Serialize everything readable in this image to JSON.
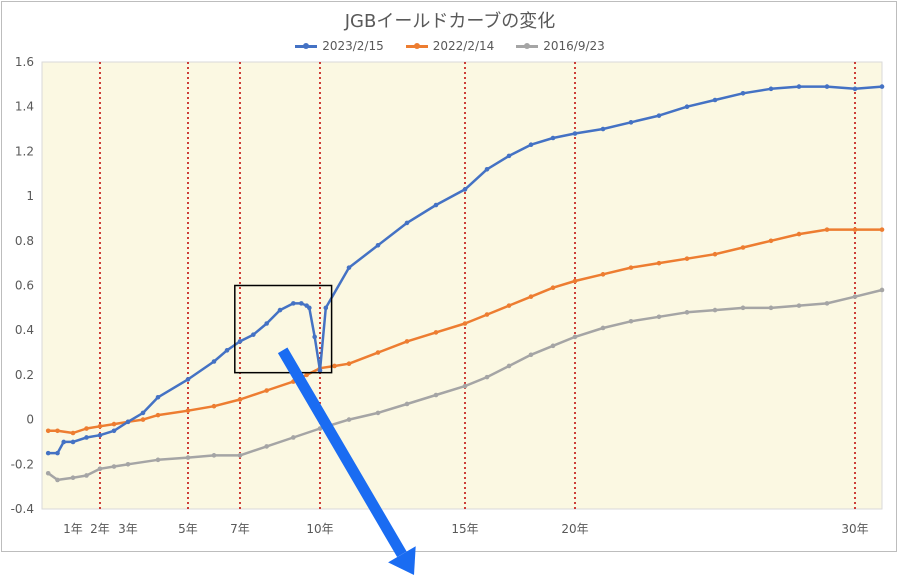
{
  "chart_data": {
    "type": "line",
    "title": "JGBイールドカーブの変化",
    "ylim": [
      -0.4,
      1.6
    ],
    "y_ticks": [
      "1.6",
      "1.4",
      "1.2",
      "1",
      "0.8",
      "0.6",
      "0.4",
      "0.2",
      "0",
      "-0.2",
      "-0.4"
    ],
    "y_tick_values": [
      1.6,
      1.4,
      1.2,
      1.0,
      0.8,
      0.6,
      0.4,
      0.2,
      0.0,
      -0.2,
      -0.4
    ],
    "x_tick_labels": [
      "1年",
      "2年",
      "3年",
      "5年",
      "7年",
      "10年",
      "15年",
      "20年",
      "30年"
    ],
    "x_tick_years": [
      1,
      2,
      3,
      5,
      7,
      10,
      15,
      20,
      30
    ],
    "vertical_reference_lines_years": [
      2,
      5,
      7,
      10,
      15,
      20,
      30
    ],
    "plot_background": "#fbf8e2",
    "legend_position": "top",
    "grid": false,
    "series": [
      {
        "name": "2023/2/15",
        "color": "#4472c4",
        "x": [
          0.2,
          0.5,
          0.7,
          1,
          1.5,
          2,
          2.5,
          3,
          3.5,
          4,
          5,
          6,
          6.5,
          7,
          7.5,
          8,
          8.5,
          9,
          9.3,
          9.5,
          9.6,
          9.8,
          10,
          10.2,
          11,
          12,
          13,
          14,
          15,
          16,
          17,
          18,
          19,
          20,
          21,
          22,
          23,
          24,
          25,
          26,
          27,
          28,
          29,
          30,
          31
        ],
        "values": [
          -0.15,
          -0.15,
          -0.1,
          -0.1,
          -0.08,
          -0.07,
          -0.05,
          -0.01,
          0.03,
          0.1,
          0.18,
          0.26,
          0.31,
          0.35,
          0.38,
          0.43,
          0.49,
          0.52,
          0.52,
          0.51,
          0.5,
          0.37,
          0.22,
          0.5,
          0.68,
          0.78,
          0.88,
          0.96,
          1.03,
          1.12,
          1.18,
          1.23,
          1.26,
          1.28,
          1.3,
          1.33,
          1.36,
          1.4,
          1.43,
          1.46,
          1.48,
          1.49,
          1.49,
          1.48,
          1.49
        ]
      },
      {
        "name": "2022/2/14",
        "color": "#ed7d31",
        "x": [
          0.2,
          0.5,
          1,
          1.5,
          2,
          2.5,
          3,
          3.5,
          4,
          5,
          6,
          7,
          8,
          9,
          9.5,
          10,
          10.5,
          11,
          12,
          13,
          14,
          15,
          16,
          17,
          18,
          19,
          20,
          21,
          22,
          23,
          24,
          25,
          26,
          27,
          28,
          29,
          30,
          31
        ],
        "values": [
          -0.05,
          -0.05,
          -0.06,
          -0.04,
          -0.03,
          -0.02,
          -0.01,
          0.0,
          0.02,
          0.04,
          0.06,
          0.09,
          0.13,
          0.17,
          0.2,
          0.23,
          0.24,
          0.25,
          0.3,
          0.35,
          0.39,
          0.43,
          0.47,
          0.51,
          0.55,
          0.59,
          0.62,
          0.65,
          0.68,
          0.7,
          0.72,
          0.74,
          0.77,
          0.8,
          0.83,
          0.85,
          0.85,
          0.85
        ]
      },
      {
        "name": "2016/9/23",
        "color": "#a5a5a5",
        "x": [
          0.2,
          0.5,
          1,
          1.5,
          2,
          2.5,
          3,
          4,
          5,
          6,
          7,
          8,
          9,
          10,
          11,
          12,
          13,
          14,
          15,
          16,
          17,
          18,
          19,
          20,
          21,
          22,
          23,
          24,
          25,
          26,
          27,
          28,
          29,
          30,
          31
        ],
        "values": [
          -0.24,
          -0.27,
          -0.26,
          -0.25,
          -0.22,
          -0.21,
          -0.2,
          -0.18,
          -0.17,
          -0.16,
          -0.16,
          -0.12,
          -0.08,
          -0.04,
          0.0,
          0.03,
          0.07,
          0.11,
          0.15,
          0.19,
          0.24,
          0.29,
          0.33,
          0.37,
          0.41,
          0.44,
          0.46,
          0.48,
          0.49,
          0.5,
          0.5,
          0.51,
          0.52,
          0.55,
          0.58
        ]
      }
    ]
  }
}
